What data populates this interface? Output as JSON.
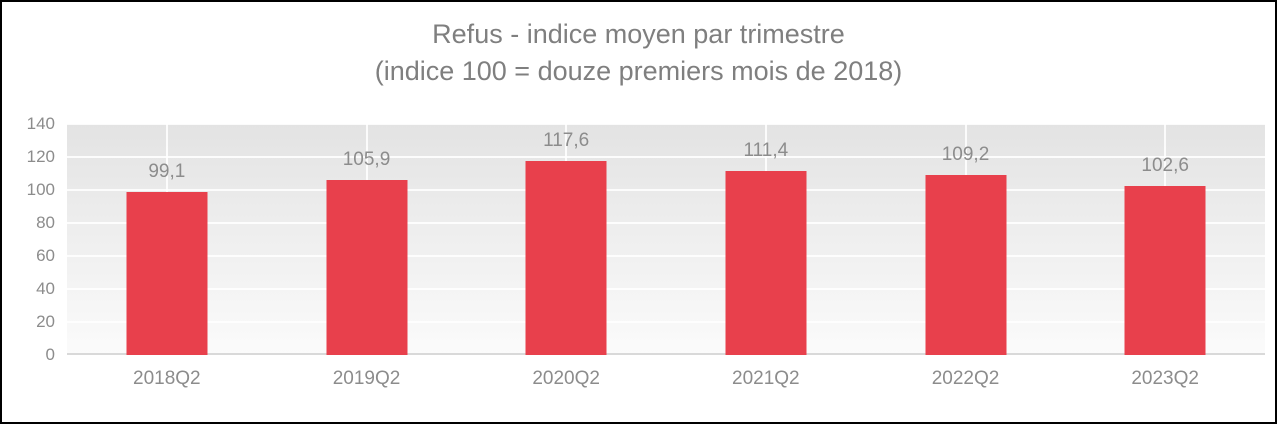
{
  "chart_data": {
    "type": "bar",
    "title": "Refus - indice moyen par trimestre",
    "subtitle": "(indice 100 = douze premiers mois de 2018)",
    "categories": [
      "2018Q2",
      "2019Q2",
      "2020Q2",
      "2021Q2",
      "2022Q2",
      "2023Q2"
    ],
    "values": [
      99.1,
      105.9,
      117.6,
      111.4,
      109.2,
      102.6
    ],
    "value_labels": [
      "99,1",
      "105,9",
      "117,6",
      "111,4",
      "109,2",
      "102,6"
    ],
    "xlabel": "",
    "ylabel": "",
    "ylim": [
      0,
      140
    ],
    "ytick_step": 20,
    "yticks": [
      "0",
      "20",
      "40",
      "60",
      "80",
      "100",
      "120",
      "140"
    ],
    "grid": true,
    "legend_position": "none",
    "bar_color": "#e8404c",
    "label_color": "#8c8c8c",
    "title_color": "#7f7f7f",
    "plot_bg_top": "#e3e3e3",
    "plot_bg_bottom": "#fbfbfb",
    "gridline_color": "#ffffff",
    "axis_line_color": "#d9d9d9",
    "frame_border_color": "#000000"
  }
}
